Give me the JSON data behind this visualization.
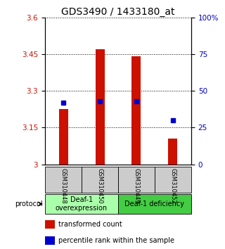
{
  "title": "GDS3490 / 1433180_at",
  "categories": [
    "GSM310448",
    "GSM310450",
    "GSM310449",
    "GSM310452"
  ],
  "bar_values": [
    3.225,
    3.47,
    3.442,
    3.105
  ],
  "bar_base": 3.0,
  "percentile_values": [
    42,
    43,
    43,
    30
  ],
  "ylim_left": [
    3.0,
    3.6
  ],
  "ylim_right": [
    0,
    100
  ],
  "yticks_left": [
    3.0,
    3.15,
    3.3,
    3.45,
    3.6
  ],
  "yticks_right": [
    0,
    25,
    50,
    75,
    100
  ],
  "ytick_labels_left": [
    "3",
    "3.15",
    "3.3",
    "3.45",
    "3.6"
  ],
  "ytick_labels_right": [
    "0",
    "25",
    "50",
    "75",
    "100%"
  ],
  "bar_color": "#cc1100",
  "marker_color": "#0000cc",
  "protocol_groups": [
    {
      "label": "Deaf-1\noverexpression",
      "cols": [
        0,
        1
      ],
      "color": "#aaffaa"
    },
    {
      "label": "Deaf-1 deficiency",
      "cols": [
        2,
        3
      ],
      "color": "#44cc44"
    }
  ],
  "protocol_label": "protocol",
  "legend_items": [
    {
      "color": "#cc1100",
      "label": "transformed count"
    },
    {
      "color": "#0000cc",
      "label": "percentile rank within the sample"
    }
  ],
  "tick_label_color_left": "#cc1100",
  "tick_label_color_right": "#0000bb",
  "bar_width": 0.25,
  "title_fontsize": 10,
  "axis_fontsize": 7.5,
  "legend_fontsize": 7
}
